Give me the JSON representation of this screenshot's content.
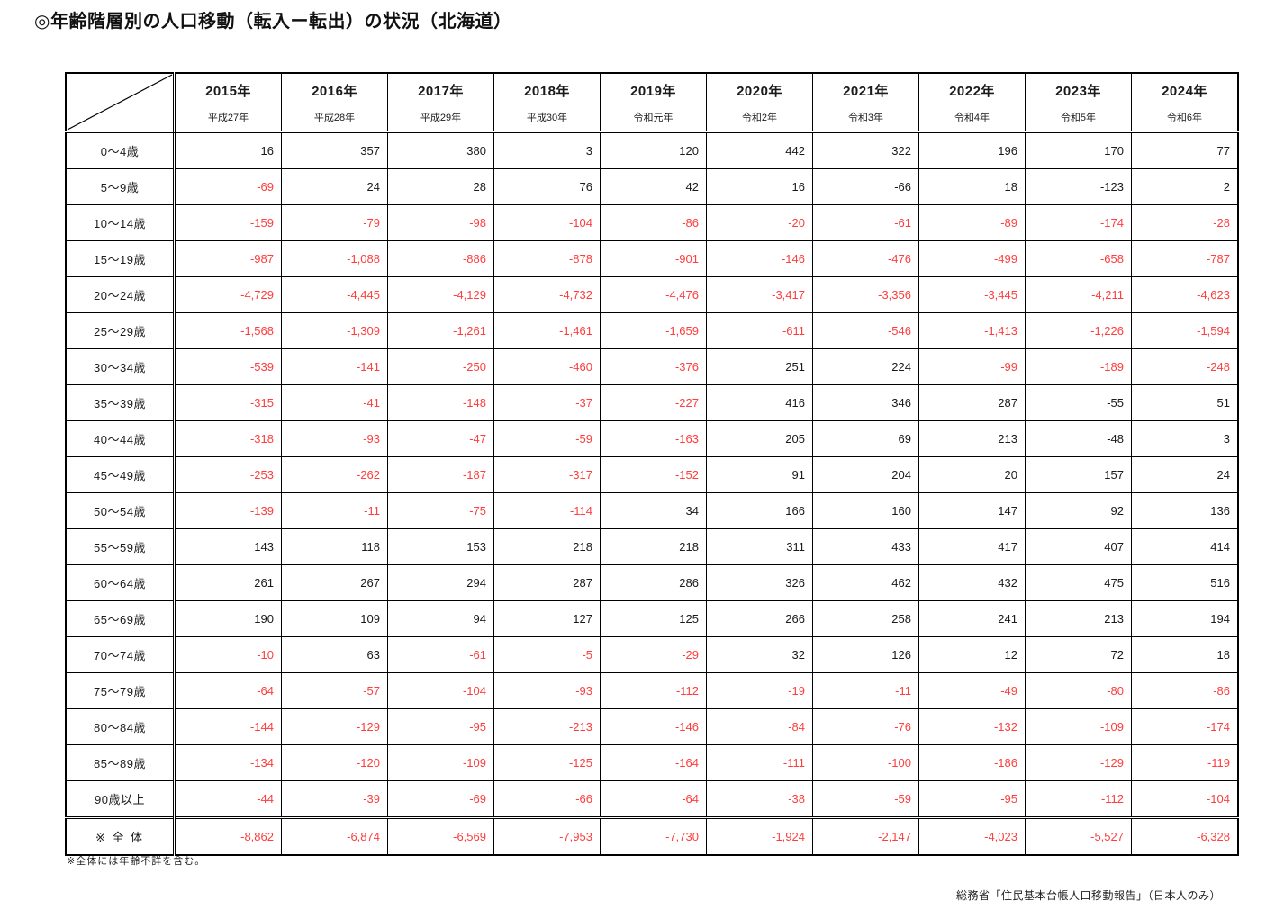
{
  "title": "◎年齢階層別の人口移動（転入ー転出）の状況（北海道）",
  "footnote": "※全体には年齢不詳を含む。",
  "source": "総務省「住民基本台帳人口移動報告」（日本人のみ）",
  "colors": {
    "negative_value": "#ff3d3d",
    "text": "#1a1a1a",
    "border": "#000000",
    "background": "#ffffff"
  },
  "table": {
    "columns": [
      {
        "year": "2015年",
        "era": "平成27年"
      },
      {
        "year": "2016年",
        "era": "平成28年"
      },
      {
        "year": "2017年",
        "era": "平成29年"
      },
      {
        "year": "2018年",
        "era": "平成30年"
      },
      {
        "year": "2019年",
        "era": "令和元年"
      },
      {
        "year": "2020年",
        "era": "令和2年"
      },
      {
        "year": "2021年",
        "era": "令和3年"
      },
      {
        "year": "2022年",
        "era": "令和4年"
      },
      {
        "year": "2023年",
        "era": "令和5年"
      },
      {
        "year": "2024年",
        "era": "令和6年"
      }
    ],
    "rows": [
      {
        "label": "0～4歳",
        "values": [
          "16",
          "357",
          "380",
          "3",
          "120",
          "442",
          "322",
          "196",
          "170",
          "77"
        ]
      },
      {
        "label": "5～9歳",
        "values": [
          "-69",
          "24",
          "28",
          "76",
          "42",
          "16",
          "-66",
          "18",
          "-123",
          "2"
        ]
      },
      {
        "label": "10～14歳",
        "values": [
          "-159",
          "-79",
          "-98",
          "-104",
          "-86",
          "-20",
          "-61",
          "-89",
          "-174",
          "-28"
        ]
      },
      {
        "label": "15～19歳",
        "values": [
          "-987",
          "-1,088",
          "-886",
          "-878",
          "-901",
          "-146",
          "-476",
          "-499",
          "-658",
          "-787"
        ]
      },
      {
        "label": "20～24歳",
        "values": [
          "-4,729",
          "-4,445",
          "-4,129",
          "-4,732",
          "-4,476",
          "-3,417",
          "-3,356",
          "-3,445",
          "-4,211",
          "-4,623"
        ]
      },
      {
        "label": "25～29歳",
        "values": [
          "-1,568",
          "-1,309",
          "-1,261",
          "-1,461",
          "-1,659",
          "-611",
          "-546",
          "-1,413",
          "-1,226",
          "-1,594"
        ]
      },
      {
        "label": "30～34歳",
        "values": [
          "-539",
          "-141",
          "-250",
          "-460",
          "-376",
          "251",
          "224",
          "-99",
          "-189",
          "-248"
        ]
      },
      {
        "label": "35～39歳",
        "values": [
          "-315",
          "-41",
          "-148",
          "-37",
          "-227",
          "416",
          "346",
          "287",
          "-55",
          "51"
        ]
      },
      {
        "label": "40～44歳",
        "values": [
          "-318",
          "-93",
          "-47",
          "-59",
          "-163",
          "205",
          "69",
          "213",
          "-48",
          "3"
        ]
      },
      {
        "label": "45～49歳",
        "values": [
          "-253",
          "-262",
          "-187",
          "-317",
          "-152",
          "91",
          "204",
          "20",
          "157",
          "24"
        ]
      },
      {
        "label": "50～54歳",
        "values": [
          "-139",
          "-11",
          "-75",
          "-114",
          "34",
          "166",
          "160",
          "147",
          "92",
          "136"
        ]
      },
      {
        "label": "55～59歳",
        "values": [
          "143",
          "118",
          "153",
          "218",
          "218",
          "311",
          "433",
          "417",
          "407",
          "414"
        ]
      },
      {
        "label": "60～64歳",
        "values": [
          "261",
          "267",
          "294",
          "287",
          "286",
          "326",
          "462",
          "432",
          "475",
          "516"
        ]
      },
      {
        "label": "65～69歳",
        "values": [
          "190",
          "109",
          "94",
          "127",
          "125",
          "266",
          "258",
          "241",
          "213",
          "194"
        ]
      },
      {
        "label": "70～74歳",
        "values": [
          "-10",
          "63",
          "-61",
          "-5",
          "-29",
          "32",
          "126",
          "12",
          "72",
          "18"
        ]
      },
      {
        "label": "75～79歳",
        "values": [
          "-64",
          "-57",
          "-104",
          "-93",
          "-112",
          "-19",
          "-11",
          "-49",
          "-80",
          "-86"
        ]
      },
      {
        "label": "80～84歳",
        "values": [
          "-144",
          "-129",
          "-95",
          "-213",
          "-146",
          "-84",
          "-76",
          "-132",
          "-109",
          "-174"
        ]
      },
      {
        "label": "85～89歳",
        "values": [
          "-134",
          "-120",
          "-109",
          "-125",
          "-164",
          "-111",
          "-100",
          "-186",
          "-129",
          "-119"
        ]
      },
      {
        "label": "90歳以上",
        "values": [
          "-44",
          "-39",
          "-69",
          "-66",
          "-64",
          "-38",
          "-59",
          "-95",
          "-112",
          "-104"
        ]
      },
      {
        "label": "※ 全 体",
        "total": true,
        "values": [
          "-8,862",
          "-6,874",
          "-6,569",
          "-7,953",
          "-7,730",
          "-1,924",
          "-2,147",
          "-4,023",
          "-5,527",
          "-6,328"
        ]
      }
    ],
    "black_negatives": [
      [
        1,
        6
      ],
      [
        1,
        8
      ],
      [
        7,
        8
      ],
      [
        8,
        8
      ]
    ]
  }
}
